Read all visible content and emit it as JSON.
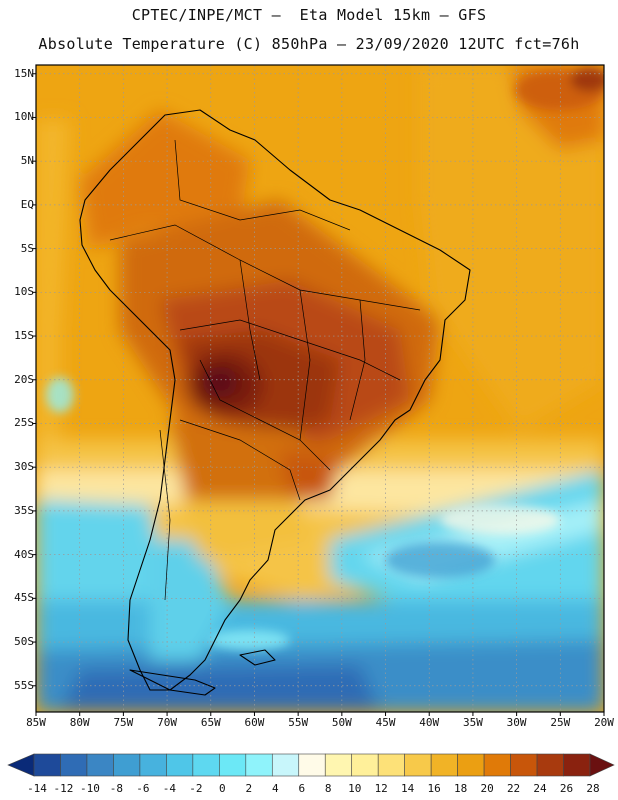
{
  "header": {
    "line1": "CPTEC/INPE/MCT –  Eta Model 15km – GFS",
    "line2": "Absolute Temperature (C) 850hPa – 23/09/2020 12UTC fct=76h"
  },
  "map": {
    "region": "South America",
    "lon_range": [
      -85,
      -20
    ],
    "lat_range": [
      -58,
      16
    ],
    "lat_ticks": [
      "15N",
      "10N",
      "5N",
      "EQ",
      "5S",
      "10S",
      "15S",
      "20S",
      "25S",
      "30S",
      "35S",
      "40S",
      "45S",
      "50S",
      "55S"
    ],
    "lon_ticks": [
      "85W",
      "80W",
      "75W",
      "70W",
      "65W",
      "60W",
      "55W",
      "50W",
      "45W",
      "40W",
      "35W",
      "30W",
      "25W",
      "20W"
    ],
    "grid": "dotted"
  },
  "colorbar": {
    "labels": [
      "-14",
      "-12",
      "-10",
      "-8",
      "-6",
      "-4",
      "-2",
      "0",
      "2",
      "4",
      "6",
      "8",
      "10",
      "12",
      "14",
      "16",
      "18",
      "20",
      "22",
      "24",
      "26",
      "28"
    ],
    "colors": [
      "#0a2a78",
      "#1e4a9a",
      "#2f6cb5",
      "#3b86c4",
      "#3f9ed2",
      "#47b2de",
      "#4fc6e8",
      "#5ed8f0",
      "#6ce8f6",
      "#8ff3fb",
      "#c8f6fb",
      "#fffbe8",
      "#fff6b0",
      "#fff09a",
      "#fde178",
      "#f7c94a",
      "#f1b326",
      "#eb9f12",
      "#e07a08",
      "#c8560a",
      "#a83a0e",
      "#8a220f",
      "#6a1010"
    ]
  }
}
